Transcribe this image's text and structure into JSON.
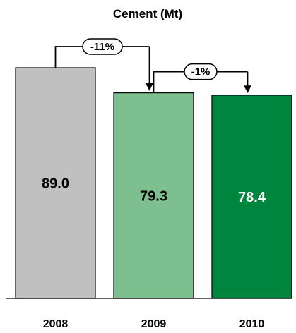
{
  "chart_data": {
    "type": "bar",
    "title": "Cement (Mt)",
    "categories": [
      "2008",
      "2009",
      "2010"
    ],
    "values": [
      89.0,
      79.3,
      78.4
    ],
    "value_labels": [
      "89.0",
      "79.3",
      "78.4"
    ],
    "bar_colors": [
      "#c0c0c0",
      "#7dbf8f",
      "#00853e"
    ],
    "label_colors": [
      "#000000",
      "#000000",
      "#ffffff"
    ],
    "changes": [
      {
        "from": "2008",
        "to": "2009",
        "label": "-11%"
      },
      {
        "from": "2009",
        "to": "2010",
        "label": "-1%"
      }
    ],
    "xlabel": "",
    "ylabel": "",
    "ylim": [
      0,
      89.0
    ],
    "grid": false,
    "legend": "none"
  }
}
